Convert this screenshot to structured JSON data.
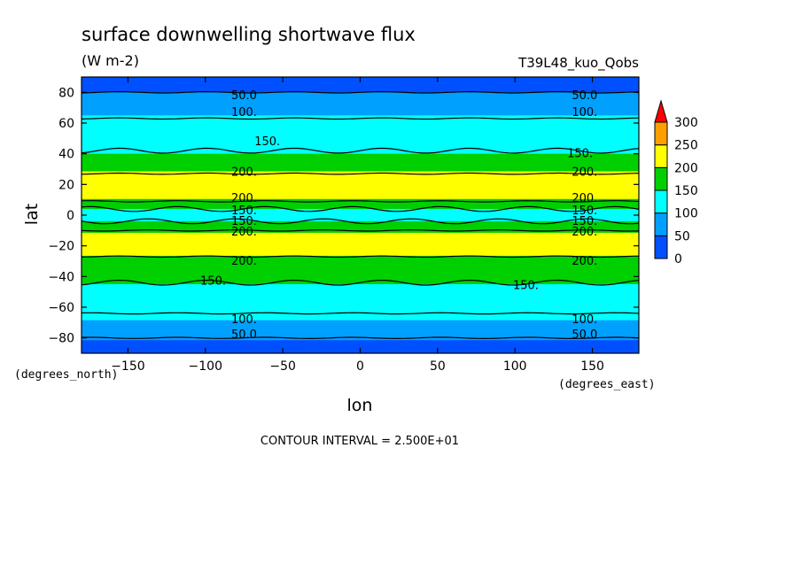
{
  "chart_data": {
    "type": "heatmap",
    "title": "surface downwelling shortwave flux",
    "units": "(W m-2)",
    "run_label": "T39L48_kuo_Qobs",
    "xlabel": "lon",
    "ylabel": "lat",
    "x_units": "(degrees_east)",
    "y_units": "(degrees_north)",
    "xlim": [
      -180,
      180
    ],
    "ylim": [
      -90,
      90
    ],
    "x_ticks": [
      -150,
      -100,
      -50,
      0,
      50,
      100,
      150
    ],
    "y_ticks": [
      -80,
      -60,
      -40,
      -20,
      0,
      20,
      40,
      60,
      80
    ],
    "contour_interval_text": "CONTOUR INTERVAL = 2.500E+01",
    "colorbar": {
      "levels": [
        0,
        50,
        100,
        150,
        200,
        250,
        300
      ],
      "colors": [
        "#0050ff",
        "#00a0ff",
        "#00ffff",
        "#00d000",
        "#ffff00",
        "#ffa000"
      ],
      "over_color": "#ff0000"
    },
    "zonal_profile": [
      {
        "lat": -90,
        "value": 20
      },
      {
        "lat": -85,
        "value": 40
      },
      {
        "lat": -80,
        "value": 55
      },
      {
        "lat": -75,
        "value": 75
      },
      {
        "lat": -70,
        "value": 95
      },
      {
        "lat": -65,
        "value": 110
      },
      {
        "lat": -60,
        "value": 122
      },
      {
        "lat": -55,
        "value": 132
      },
      {
        "lat": -50,
        "value": 142
      },
      {
        "lat": -45,
        "value": 150
      },
      {
        "lat": -40,
        "value": 160
      },
      {
        "lat": -35,
        "value": 175
      },
      {
        "lat": -30,
        "value": 190
      },
      {
        "lat": -25,
        "value": 205
      },
      {
        "lat": -20,
        "value": 215
      },
      {
        "lat": -15,
        "value": 212
      },
      {
        "lat": -10,
        "value": 195
      },
      {
        "lat": -7,
        "value": 175
      },
      {
        "lat": -4,
        "value": 150
      },
      {
        "lat": -2,
        "value": 142
      },
      {
        "lat": 0,
        "value": 140
      },
      {
        "lat": 2,
        "value": 142
      },
      {
        "lat": 4,
        "value": 150
      },
      {
        "lat": 7,
        "value": 178
      },
      {
        "lat": 10,
        "value": 198
      },
      {
        "lat": 15,
        "value": 215
      },
      {
        "lat": 20,
        "value": 218
      },
      {
        "lat": 25,
        "value": 210
      },
      {
        "lat": 30,
        "value": 195
      },
      {
        "lat": 35,
        "value": 170
      },
      {
        "lat": 40,
        "value": 150
      },
      {
        "lat": 45,
        "value": 135
      },
      {
        "lat": 50,
        "value": 125
      },
      {
        "lat": 55,
        "value": 118
      },
      {
        "lat": 60,
        "value": 110
      },
      {
        "lat": 65,
        "value": 100
      },
      {
        "lat": 70,
        "value": 85
      },
      {
        "lat": 75,
        "value": 65
      },
      {
        "lat": 80,
        "value": 50
      },
      {
        "lat": 85,
        "value": 35
      },
      {
        "lat": 90,
        "value": 20
      }
    ],
    "contour_labels": [
      {
        "text": "50.0",
        "lon": -75,
        "lat": 78
      },
      {
        "text": "50.0",
        "lon": 145,
        "lat": 78
      },
      {
        "text": "100.",
        "lon": -75,
        "lat": 67
      },
      {
        "text": "100.",
        "lon": 145,
        "lat": 67
      },
      {
        "text": "150.",
        "lon": -60,
        "lat": 48
      },
      {
        "text": "150.",
        "lon": 142,
        "lat": 40
      },
      {
        "text": "200.",
        "lon": -75,
        "lat": 28
      },
      {
        "text": "200.",
        "lon": 145,
        "lat": 28
      },
      {
        "text": "200.",
        "lon": -75,
        "lat": 11
      },
      {
        "text": "200.",
        "lon": 145,
        "lat": 11
      },
      {
        "text": "150.",
        "lon": -75,
        "lat": 3
      },
      {
        "text": "150.",
        "lon": 145,
        "lat": 3
      },
      {
        "text": "150.",
        "lon": -75,
        "lat": -4
      },
      {
        "text": "150.",
        "lon": 145,
        "lat": -4
      },
      {
        "text": "200.",
        "lon": -75,
        "lat": -11
      },
      {
        "text": "200.",
        "lon": 145,
        "lat": -11
      },
      {
        "text": "200.",
        "lon": -75,
        "lat": -30
      },
      {
        "text": "200.",
        "lon": 145,
        "lat": -30
      },
      {
        "text": "150.",
        "lon": -95,
        "lat": -43
      },
      {
        "text": "150.",
        "lon": 107,
        "lat": -46
      },
      {
        "text": "100.",
        "lon": -75,
        "lat": -68
      },
      {
        "text": "100.",
        "lon": 145,
        "lat": -68
      },
      {
        "text": "50.0",
        "lon": -75,
        "lat": -78
      },
      {
        "text": "50.0",
        "lon": 145,
        "lat": -78
      }
    ],
    "isolines": [
      {
        "level": 50,
        "lats": [
          80,
          -80
        ]
      },
      {
        "level": 100,
        "lats": [
          63,
          -64
        ]
      },
      {
        "level": 150,
        "lats": [
          42,
          4,
          -4,
          -44
        ]
      },
      {
        "level": 200,
        "lats": [
          27,
          9,
          -10,
          -27
        ]
      }
    ]
  }
}
